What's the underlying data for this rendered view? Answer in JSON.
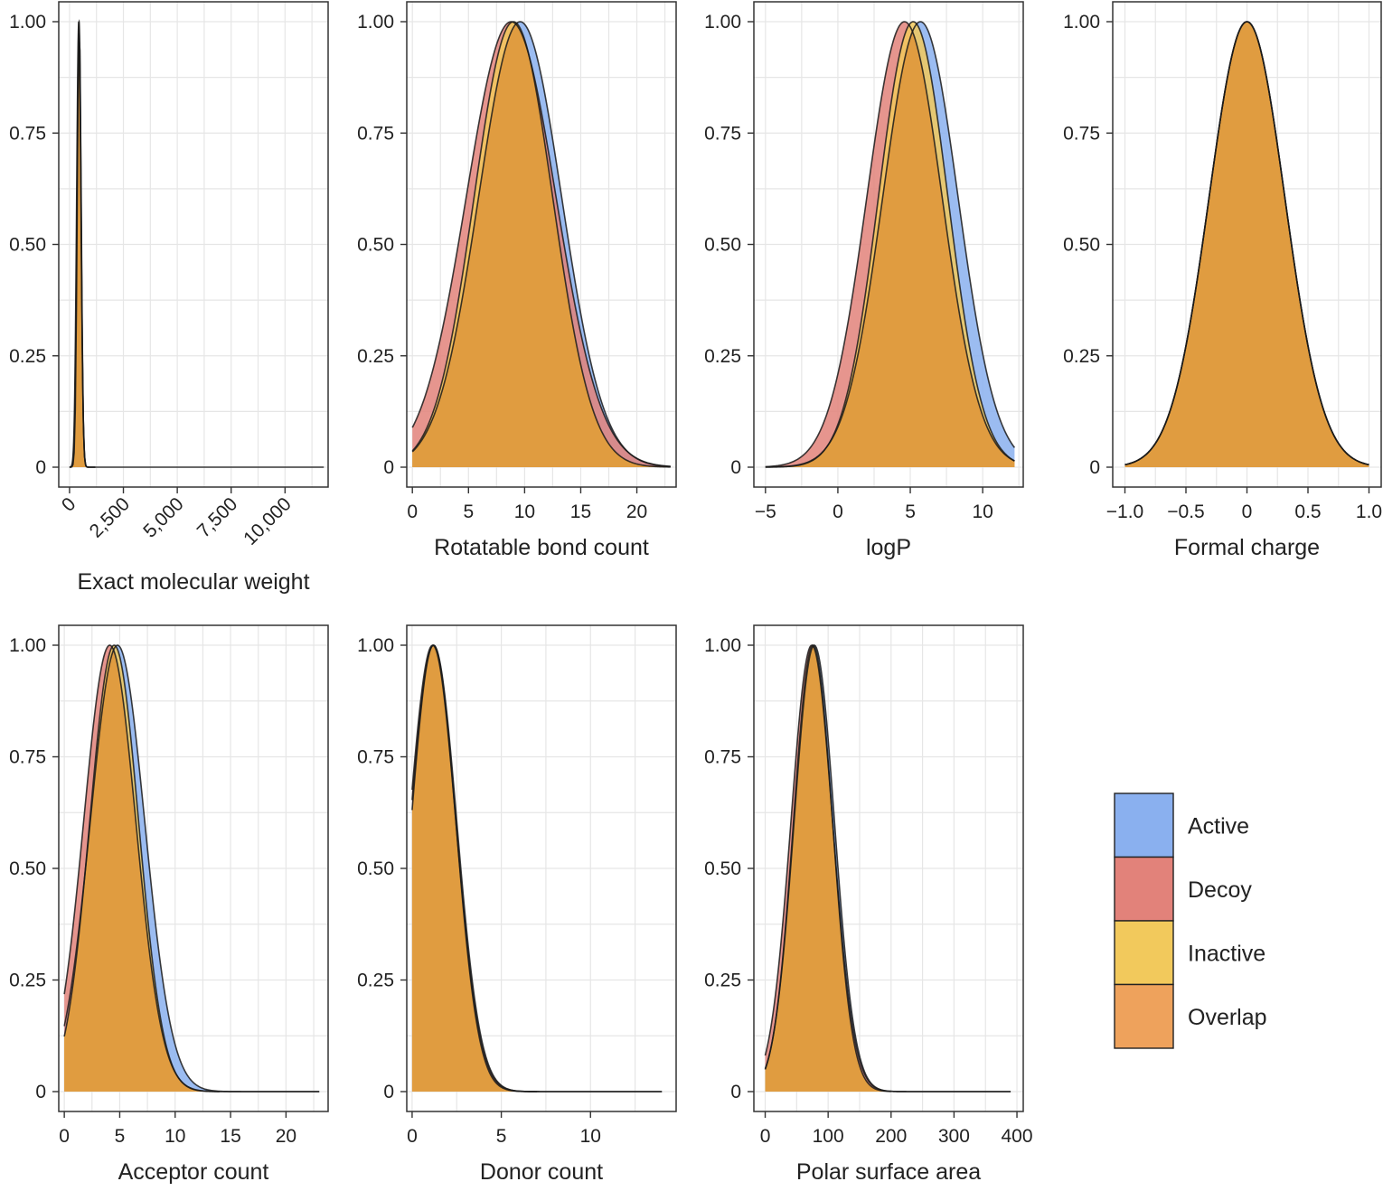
{
  "colors": {
    "active": "#8ab0ef",
    "decoy": "#e2827a",
    "inactive": "#f2c95c",
    "overlap": "#eea25c",
    "overlap_dark": "#de9a3e",
    "outline": "#1a1a1a",
    "grid": "#e6e6e6",
    "frame": "#333333"
  },
  "chart_data": [
    {
      "id": "mw",
      "type": "area",
      "title": "",
      "xlabel": "Exact molecular weight",
      "ylabel": "",
      "xlim": [
        -500,
        12000
      ],
      "ylim": [
        0,
        1
      ],
      "xticks": [
        0,
        2500,
        5000,
        7500,
        10000
      ],
      "xtick_labels": [
        "0",
        "2,500",
        "5,000",
        "7,500",
        "10,000"
      ],
      "rotate_xticks": true,
      "yticks": [
        0,
        0.25,
        0.5,
        0.75,
        1
      ],
      "ytick_labels": [
        "0",
        "0.25",
        "0.50",
        "0.75",
        "1.00"
      ],
      "series": [
        {
          "name": "Active",
          "mu": 450,
          "sigma": 90,
          "x0": 0,
          "x1": 11800
        },
        {
          "name": "Decoy",
          "mu": 430,
          "sigma": 100,
          "x0": 0,
          "x1": 1200
        },
        {
          "name": "Inactive",
          "mu": 440,
          "sigma": 95,
          "x0": 0,
          "x1": 1200
        }
      ]
    },
    {
      "id": "rot",
      "type": "area",
      "title": "",
      "xlabel": "Rotatable bond count",
      "ylabel": "",
      "xlim": [
        -0.5,
        23.5
      ],
      "ylim": [
        0,
        1
      ],
      "xticks": [
        0,
        5,
        10,
        15,
        20
      ],
      "xtick_labels": [
        "0",
        "5",
        "10",
        "15",
        "20"
      ],
      "rotate_xticks": false,
      "yticks": [
        0,
        0.25,
        0.5,
        0.75,
        1
      ],
      "ytick_labels": [
        "0",
        "0.25",
        "0.50",
        "0.75",
        "1.00"
      ],
      "series": [
        {
          "name": "Active",
          "mu": 9.6,
          "sigma": 3.7,
          "x0": 0,
          "x1": 23
        },
        {
          "name": "Decoy",
          "mu": 8.8,
          "sigma": 4.0,
          "x0": 0,
          "x1": 23
        },
        {
          "name": "Inactive",
          "mu": 9.0,
          "sigma": 3.5,
          "x0": 0,
          "x1": 23
        }
      ]
    },
    {
      "id": "logp",
      "type": "area",
      "title": "",
      "xlabel": "logP",
      "ylabel": "",
      "xlim": [
        -5.8,
        12.8
      ],
      "ylim": [
        0,
        1
      ],
      "xticks": [
        -5,
        0,
        5,
        10
      ],
      "xtick_labels": [
        "−5",
        "0",
        "5",
        "10"
      ],
      "rotate_xticks": false,
      "yticks": [
        0,
        0.25,
        0.5,
        0.75,
        1
      ],
      "ytick_labels": [
        "0",
        "0.25",
        "0.50",
        "0.75",
        "1.00"
      ],
      "series": [
        {
          "name": "Active",
          "mu": 5.7,
          "sigma": 2.6,
          "x0": -5,
          "x1": 12.2
        },
        {
          "name": "Decoy",
          "mu": 4.6,
          "sigma": 2.6,
          "x0": -5,
          "x1": 12.2
        },
        {
          "name": "Inactive",
          "mu": 5.2,
          "sigma": 2.4,
          "x0": -5,
          "x1": 12.2
        }
      ]
    },
    {
      "id": "charge",
      "type": "area",
      "title": "",
      "xlabel": "Formal charge",
      "ylabel": "",
      "xlim": [
        -1.1,
        1.1
      ],
      "ylim": [
        0,
        1
      ],
      "xticks": [
        -1,
        -0.5,
        0,
        0.5,
        1
      ],
      "xtick_labels": [
        "−1.0",
        "−0.5",
        "0",
        "0.5",
        "1.0"
      ],
      "rotate_xticks": false,
      "yticks": [
        0,
        0.25,
        0.5,
        0.75,
        1
      ],
      "ytick_labels": [
        "0",
        "0.25",
        "0.50",
        "0.75",
        "1.00"
      ],
      "series": [
        {
          "name": "Active",
          "mu": 0,
          "sigma": 0.31,
          "x0": -1,
          "x1": 1
        },
        {
          "name": "Decoy",
          "mu": 0,
          "sigma": 0.31,
          "x0": -1,
          "x1": 1
        },
        {
          "name": "Inactive",
          "mu": 0,
          "sigma": 0.31,
          "x0": -1,
          "x1": 1
        }
      ]
    },
    {
      "id": "acc",
      "type": "area",
      "title": "",
      "xlabel": "Acceptor count",
      "ylabel": "",
      "xlim": [
        -0.5,
        23.8
      ],
      "ylim": [
        0,
        1
      ],
      "xticks": [
        0,
        5,
        10,
        15,
        20
      ],
      "xtick_labels": [
        "0",
        "5",
        "10",
        "15",
        "20"
      ],
      "rotate_xticks": false,
      "yticks": [
        0,
        0.25,
        0.5,
        0.75,
        1
      ],
      "ytick_labels": [
        "0",
        "0.25",
        "0.50",
        "0.75",
        "1.00"
      ],
      "series": [
        {
          "name": "Active",
          "mu": 4.8,
          "sigma": 2.45,
          "x0": 0,
          "x1": 23
        },
        {
          "name": "Decoy",
          "mu": 4.1,
          "sigma": 2.35,
          "x0": 0,
          "x1": 23
        },
        {
          "name": "Inactive",
          "mu": 4.5,
          "sigma": 2.2,
          "x0": 0,
          "x1": 14
        }
      ]
    },
    {
      "id": "don",
      "type": "area",
      "title": "",
      "xlabel": "Donor count",
      "ylabel": "",
      "xlim": [
        -0.3,
        14.8
      ],
      "ylim": [
        0,
        1
      ],
      "xticks": [
        0,
        5,
        10
      ],
      "xtick_labels": [
        "0",
        "5",
        "10"
      ],
      "rotate_xticks": false,
      "yticks": [
        0,
        0.25,
        0.5,
        0.75,
        1
      ],
      "ytick_labels": [
        "0",
        "0.25",
        "0.50",
        "0.75",
        "1.00"
      ],
      "series": [
        {
          "name": "Active",
          "mu": 1.2,
          "sigma": 1.3,
          "x0": 0,
          "x1": 14
        },
        {
          "name": "Decoy",
          "mu": 1.15,
          "sigma": 1.3,
          "x0": 0,
          "x1": 14
        },
        {
          "name": "Inactive",
          "mu": 1.2,
          "sigma": 1.25,
          "x0": 0,
          "x1": 7
        }
      ]
    },
    {
      "id": "psa",
      "type": "area",
      "title": "",
      "xlabel": "Polar surface area",
      "ylabel": "",
      "xlim": [
        -18,
        410
      ],
      "ylim": [
        0,
        1
      ],
      "xticks": [
        0,
        100,
        200,
        300,
        400
      ],
      "xtick_labels": [
        "0",
        "100",
        "200",
        "300",
        "400"
      ],
      "rotate_xticks": false,
      "yticks": [
        0,
        0.25,
        0.5,
        0.75,
        1
      ],
      "ytick_labels": [
        "0",
        "0.25",
        "0.50",
        "0.75",
        "1.00"
      ],
      "series": [
        {
          "name": "Active",
          "mu": 78,
          "sigma": 32,
          "x0": 0,
          "x1": 390
        },
        {
          "name": "Decoy",
          "mu": 74,
          "sigma": 33,
          "x0": 0,
          "x1": 390
        },
        {
          "name": "Inactive",
          "mu": 76,
          "sigma": 31,
          "x0": 0,
          "x1": 200
        }
      ]
    }
  ],
  "legend": {
    "position": "right-bottom",
    "items": [
      {
        "label": "Active",
        "color": "#8ab0ef"
      },
      {
        "label": "Decoy",
        "color": "#e2827a"
      },
      {
        "label": "Inactive",
        "color": "#f2c95c"
      },
      {
        "label": "Overlap",
        "color": "#eea25c"
      }
    ]
  }
}
